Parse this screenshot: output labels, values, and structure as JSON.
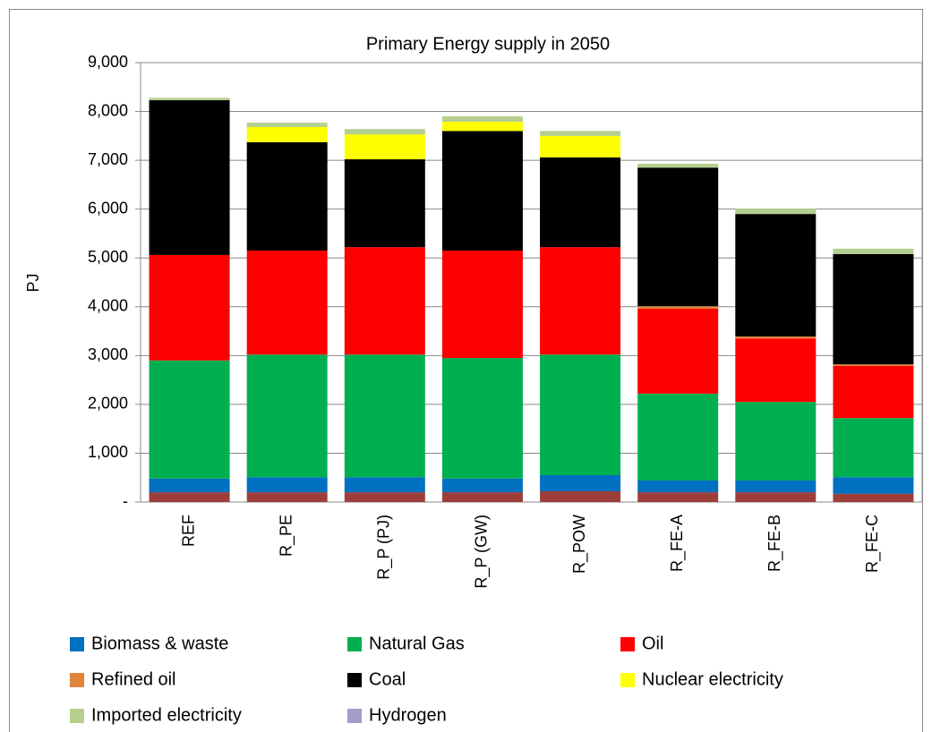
{
  "chart_data": {
    "type": "stacked_bar",
    "title": "Primary Energy supply in 2050",
    "y_label": "PJ",
    "categories": [
      "REF",
      "R_PE",
      "R_P (PJ)",
      "R_P (GW)",
      "R_POW",
      "R_FE-A",
      "R_FE-B",
      "R_FE-C"
    ],
    "series": [
      {
        "color": "#9e3e3b",
        "values": [
          200,
          200,
          200,
          200,
          220,
          200,
          200,
          170
        ]
      },
      {
        "name": "Biomass & waste",
        "color": "#0070c0",
        "values": [
          280,
          310,
          310,
          280,
          330,
          240,
          240,
          340
        ]
      },
      {
        "name": "Natural Gas",
        "color": "#00b050",
        "values": [
          2420,
          2510,
          2510,
          2470,
          2470,
          1780,
          1610,
          1210
        ]
      },
      {
        "name": "Oil",
        "color": "#ff0000",
        "values": [
          2160,
          2130,
          2200,
          2200,
          2200,
          1740,
          1300,
          1070
        ]
      },
      {
        "name": "Refined oil",
        "color": "#e0843c",
        "values": [
          0,
          0,
          0,
          0,
          0,
          50,
          40,
          30
        ]
      },
      {
        "name": "Coal",
        "color": "#000000",
        "values": [
          3170,
          2220,
          1800,
          2450,
          1840,
          2840,
          2510,
          2260
        ]
      },
      {
        "name": "Nuclear electricity",
        "color": "#ffff00",
        "values": [
          0,
          310,
          510,
          190,
          440,
          0,
          0,
          0
        ]
      },
      {
        "name": "Imported electricity",
        "color": "#b4cf8f",
        "values": [
          50,
          90,
          110,
          110,
          100,
          80,
          110,
          110
        ]
      },
      {
        "name": "Hydrogen",
        "color": "#a49bc8",
        "values": [
          0,
          0,
          0,
          0,
          0,
          0,
          0,
          0
        ]
      }
    ],
    "ylim": [
      0,
      9000
    ],
    "yticks": [
      {
        "value": 0,
        "label": "-"
      },
      {
        "value": 1000,
        "label": "1,000"
      },
      {
        "value": 2000,
        "label": "2,000"
      },
      {
        "value": 3000,
        "label": "3,000"
      },
      {
        "value": 4000,
        "label": "4,000"
      },
      {
        "value": 5000,
        "label": "5,000"
      },
      {
        "value": 6000,
        "label": "6,000"
      },
      {
        "value": 7000,
        "label": "7,000"
      },
      {
        "value": 8000,
        "label": "8,000"
      },
      {
        "value": 9000,
        "label": "9,000"
      }
    ],
    "grid": true
  }
}
